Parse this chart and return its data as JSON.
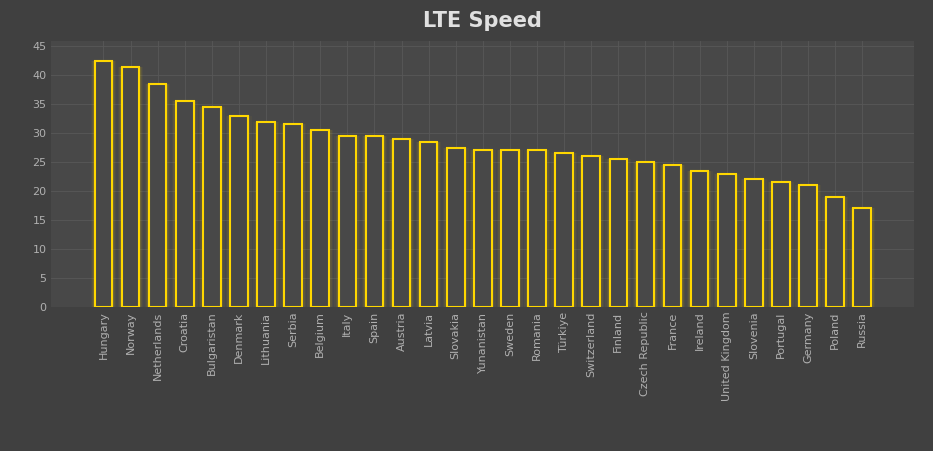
{
  "title": "LTE Speed",
  "categories": [
    "Hungary",
    "Norway",
    "Netherlands",
    "Croatia",
    "Bulgaristan",
    "Denmark",
    "Lithuania",
    "Serbia",
    "Belgium",
    "Italy",
    "Spain",
    "Austria",
    "Latvia",
    "Slovakia",
    "Yunanistan",
    "Sweden",
    "Romania",
    "Türkiye",
    "Switzerland",
    "Finland",
    "Czech Republic",
    "France",
    "Ireland",
    "United Kingdom",
    "Slovenia",
    "Portugal",
    "Germany",
    "Poland",
    "Russia"
  ],
  "values": [
    42.5,
    41.5,
    38.5,
    35.5,
    34.5,
    33.0,
    32.0,
    31.5,
    30.5,
    29.5,
    29.5,
    29.0,
    28.5,
    27.5,
    27.0,
    27.0,
    27.0,
    26.5,
    26.0,
    25.5,
    25.0,
    24.5,
    23.5,
    23.0,
    22.0,
    21.5,
    21.0,
    19.0,
    17.0
  ],
  "bar_color": "#FFD700",
  "bar_edge_color": "#FFD700",
  "background_color": "#404040",
  "plot_bg_color": "#484848",
  "grid_color": "#585858",
  "title_color": "#e0e0e0",
  "tick_color": "#b0b0b0",
  "ylim": [
    0,
    46
  ],
  "yticks": [
    0,
    5,
    10,
    15,
    20,
    25,
    30,
    35,
    40,
    45
  ],
  "title_fontsize": 15,
  "tick_fontsize": 8,
  "bar_width": 0.65
}
